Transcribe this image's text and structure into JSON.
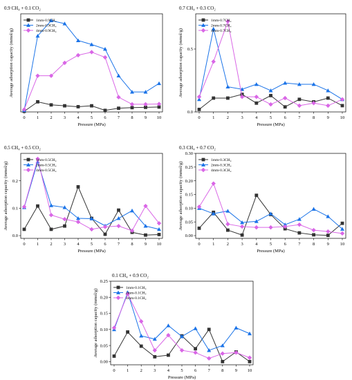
{
  "colors": {
    "series_1mm": "#333333",
    "series_2mm": "#1a73e8",
    "series_4mm": "#d966e6",
    "axis": "#000000"
  },
  "chart_data": [
    {
      "type": "line",
      "title": "0.9 CH₄ + 0.1 CO₂",
      "xlabel": "Pressure (MPa)",
      "ylabel": "Average adsorption capacity (mmol/g)",
      "x": [
        0,
        1,
        2,
        3,
        4,
        5,
        6,
        7,
        8,
        9,
        10
      ],
      "xlim": [
        0,
        10
      ],
      "ylim": [
        0,
        3.2
      ],
      "yticks": [],
      "xticks": [
        0,
        1,
        2,
        3,
        4,
        5,
        6,
        7,
        8,
        9,
        10
      ],
      "legend": "top-left",
      "series": [
        {
          "name": "1mm-0.9CH₄",
          "values": [
            0.02,
            0.33,
            0.23,
            0.2,
            0.17,
            0.2,
            0.05,
            0.12,
            0.14,
            0.15,
            0.16
          ]
        },
        {
          "name": "2mm-0.9CH₄",
          "values": [
            0.05,
            2.48,
            2.98,
            2.88,
            2.33,
            2.2,
            2.05,
            1.18,
            0.65,
            0.65,
            0.93
          ]
        },
        {
          "name": "4mm-0.9CH₄",
          "values": [
            0.08,
            1.18,
            1.18,
            1.6,
            1.85,
            1.95,
            1.78,
            0.48,
            0.25,
            0.25,
            0.26
          ]
        }
      ]
    },
    {
      "type": "line",
      "title": "0.7 CH₄ + 0.3 CO₂",
      "xlabel": "Pressure (MPa)",
      "ylabel": "Average adsorption capacity (mmol/g)",
      "x": [
        0,
        1,
        2,
        3,
        4,
        5,
        6,
        7,
        8,
        9,
        10
      ],
      "xlim": [
        0,
        10
      ],
      "ylim": [
        0,
        0.78
      ],
      "yticks": [
        0.0,
        0.5
      ],
      "xticks": [
        0,
        1,
        2,
        3,
        4,
        5,
        6,
        7,
        8,
        9,
        10
      ],
      "legend": "top-left",
      "series": [
        {
          "name": "1mm-0.7CH₄",
          "values": [
            0.02,
            0.11,
            0.11,
            0.14,
            0.07,
            0.13,
            0.04,
            0.1,
            0.08,
            0.11,
            0.05
          ]
        },
        {
          "name": "2mm-0.7CH₄",
          "values": [
            0.1,
            0.66,
            0.2,
            0.18,
            0.22,
            0.17,
            0.23,
            0.22,
            0.22,
            0.17,
            0.1
          ]
        },
        {
          "name": "4mm-0.7CH₄",
          "values": [
            0.12,
            0.4,
            0.72,
            0.12,
            0.12,
            0.06,
            0.11,
            0.05,
            0.07,
            0.05,
            0.1
          ]
        }
      ]
    },
    {
      "type": "line",
      "title": "0.5 CH₄ + 0.5 CO₂",
      "xlabel": "Pressure (MPa)",
      "ylabel": "Average adsorption capacity (mmol/g)",
      "x": [
        0,
        1,
        2,
        3,
        4,
        5,
        6,
        7,
        8,
        9,
        10
      ],
      "xlim": [
        0,
        10
      ],
      "ylim": [
        -0.01,
        0.3
      ],
      "yticks": [
        0.0,
        0.1,
        0.2
      ],
      "xticks": [
        0,
        1,
        2,
        3,
        4,
        5,
        6,
        7,
        8,
        9,
        10
      ],
      "legend": "top-left",
      "series": [
        {
          "name": "1mm-0.5CH₄",
          "values": [
            0.023,
            0.108,
            0.023,
            0.035,
            0.178,
            0.063,
            0.005,
            0.093,
            0.012,
            0.002,
            0.004
          ]
        },
        {
          "name": "2mm-0.5CH₄",
          "values": [
            0.103,
            0.27,
            0.11,
            0.103,
            0.063,
            0.062,
            0.036,
            0.063,
            0.091,
            0.035,
            0.023
          ]
        },
        {
          "name": "4mm-0.5CH₄",
          "values": [
            0.105,
            0.28,
            0.075,
            0.06,
            0.05,
            0.023,
            0.032,
            0.035,
            0.018,
            0.108,
            0.045
          ]
        }
      ]
    },
    {
      "type": "line",
      "title": "0.3 CH₄ + 0.7 CO₂",
      "xlabel": "Pressure (MPa)",
      "ylabel": "Average adsorption capacity (mmol/g)",
      "x": [
        0,
        1,
        2,
        3,
        4,
        5,
        6,
        7,
        8,
        9,
        10
      ],
      "xlim": [
        0,
        10
      ],
      "ylim": [
        -0.01,
        0.3
      ],
      "yticks": [
        0.0,
        0.05,
        0.1,
        0.15,
        0.2,
        0.25,
        0.3
      ],
      "xticks": [
        0,
        1,
        2,
        3,
        4,
        5,
        6,
        7,
        8,
        9,
        10
      ],
      "legend": "top-left",
      "series": [
        {
          "name": "1mm-0.3CH₄",
          "values": [
            0.027,
            0.085,
            0.02,
            0.002,
            0.147,
            0.077,
            0.025,
            0.01,
            0.003,
            0.001,
            0.045
          ]
        },
        {
          "name": "2mm-0.3CH₄",
          "values": [
            0.1,
            0.08,
            0.09,
            0.048,
            0.052,
            0.08,
            0.04,
            0.06,
            0.097,
            0.07,
            0.024
          ]
        },
        {
          "name": "4mm-0.3CH₄",
          "values": [
            0.105,
            0.19,
            0.042,
            0.033,
            0.03,
            0.03,
            0.033,
            0.04,
            0.02,
            0.015,
            0.008
          ]
        }
      ]
    },
    {
      "type": "line",
      "title": "0.1 CH₄ + 0.9 CO₂",
      "xlabel": "Pressure (MPa)",
      "ylabel": "Average adsorption capacity (mmol/g)",
      "x": [
        0,
        1,
        2,
        3,
        4,
        5,
        6,
        7,
        8,
        9,
        10
      ],
      "xlim": [
        0,
        10
      ],
      "ylim": [
        -0.01,
        0.25
      ],
      "yticks": [
        0.0,
        0.05,
        0.1,
        0.15,
        0.2,
        0.25
      ],
      "xticks": [
        0,
        1,
        2,
        3,
        4,
        5,
        6,
        7,
        8,
        9,
        10
      ],
      "legend": "top-left",
      "series": [
        {
          "name": "1mm-0.1CH₄",
          "values": [
            0.017,
            0.092,
            0.048,
            0.015,
            0.02,
            0.08,
            0.04,
            0.1,
            0.0,
            0.03,
            0.0
          ]
        },
        {
          "name": "2mm-0.1CH₄",
          "values": [
            0.1,
            0.215,
            0.08,
            0.07,
            0.112,
            0.078,
            0.103,
            0.035,
            0.05,
            0.105,
            0.087
          ]
        },
        {
          "name": "4mm-0.1CH₄",
          "values": [
            0.105,
            0.21,
            0.125,
            0.035,
            0.082,
            0.035,
            0.028,
            0.01,
            0.025,
            0.028,
            0.012
          ]
        }
      ]
    }
  ]
}
